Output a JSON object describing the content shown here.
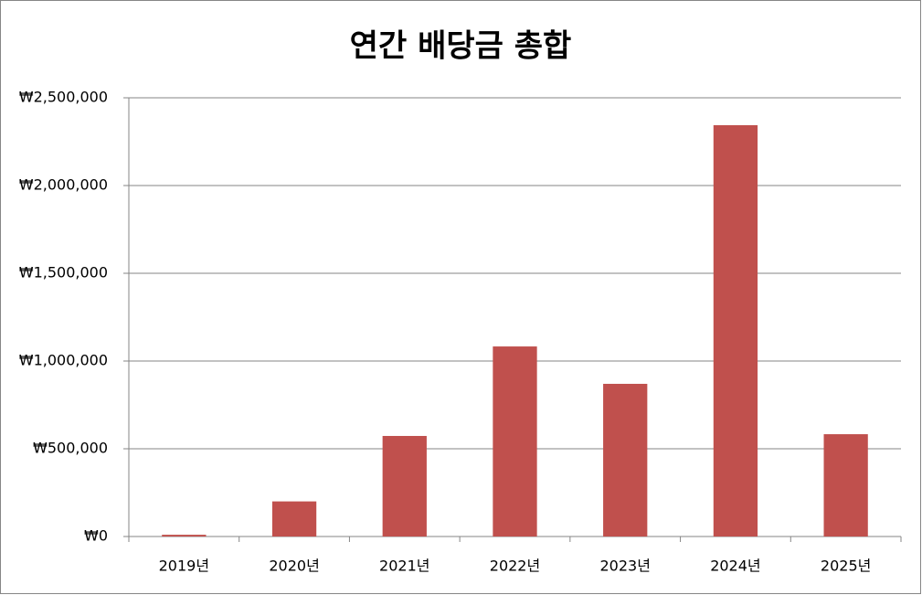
{
  "chart_data": {
    "type": "bar",
    "title": "연간 배당금 총합",
    "categories": [
      "2019년",
      "2020년",
      "2021년",
      "2022년",
      "2023년",
      "2024년",
      "2025년"
    ],
    "values": [
      10000,
      200000,
      573000,
      1083000,
      870000,
      2344000,
      583000
    ],
    "color": "#c0504d",
    "ylim": [
      0,
      2500000
    ],
    "yticks": [
      {
        "value": 0,
        "label": "₩0"
      },
      {
        "value": 500000,
        "label": "₩500,000"
      },
      {
        "value": 1000000,
        "label": "₩1,000,000"
      },
      {
        "value": 1500000,
        "label": "₩1,500,000"
      },
      {
        "value": 2000000,
        "label": "₩2,000,000"
      },
      {
        "value": 2500000,
        "label": "₩2,500,000"
      }
    ],
    "grid": true
  }
}
